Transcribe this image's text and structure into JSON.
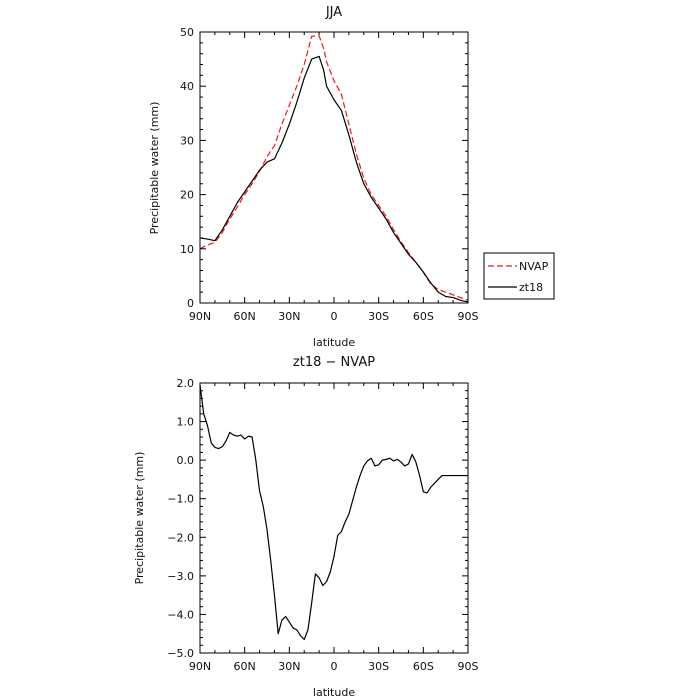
{
  "chart_data": [
    {
      "type": "line",
      "title": "JJA",
      "xlabel": "latitude",
      "ylabel": "Precipitable water (mm)",
      "xlim": [
        90,
        -90
      ],
      "ylim": [
        0,
        50
      ],
      "x_ticks": [
        90,
        60,
        30,
        0,
        -30,
        -60,
        -90
      ],
      "x_tick_labels": [
        "90N",
        "60N",
        "30N",
        "0",
        "30S",
        "60S",
        "90S"
      ],
      "y_ticks": [
        0,
        10,
        20,
        30,
        40,
        50
      ],
      "y_tick_labels": [
        "0",
        "10",
        "20",
        "30",
        "40",
        "50"
      ],
      "legend": "right, outside plot, lower",
      "series": [
        {
          "name": "NVAP",
          "color": "#e8191f",
          "dash": "dashed",
          "x": [
            90,
            85,
            80,
            75,
            70,
            65,
            60,
            55,
            50,
            45,
            40,
            35,
            30,
            25,
            20,
            15,
            10,
            7,
            5,
            0,
            -5,
            -10,
            -15,
            -20,
            -25,
            -30,
            -35,
            -40,
            -45,
            -50,
            -55,
            -60,
            -65,
            -70,
            -75,
            -80,
            -85,
            -90
          ],
          "y": [
            10.0,
            10.7,
            11.2,
            13.0,
            15.5,
            17.7,
            20.0,
            22.0,
            24.3,
            27.0,
            29.0,
            33.0,
            36.5,
            40.0,
            44.0,
            49.2,
            49.3,
            47.0,
            44.5,
            41.0,
            38.5,
            33.0,
            27.5,
            23.0,
            20.0,
            18.0,
            16.0,
            13.5,
            11.3,
            9.3,
            7.5,
            5.7,
            3.5,
            2.5,
            2.0,
            1.5,
            1.0,
            0.5
          ]
        },
        {
          "name": "zt18",
          "color": "#000000",
          "dash": "solid",
          "x": [
            90,
            85,
            80,
            75,
            70,
            65,
            60,
            55,
            50,
            45,
            40,
            35,
            30,
            25,
            20,
            15,
            10,
            7,
            5,
            0,
            -5,
            -10,
            -15,
            -20,
            -25,
            -30,
            -35,
            -40,
            -45,
            -50,
            -55,
            -60,
            -65,
            -70,
            -75,
            -80,
            -85,
            -90
          ],
          "y": [
            12.0,
            11.8,
            11.5,
            13.5,
            16.0,
            18.5,
            20.5,
            22.5,
            24.5,
            26.0,
            26.6,
            29.5,
            33.0,
            37.0,
            41.5,
            45.0,
            45.5,
            43.0,
            40.0,
            37.5,
            35.5,
            31.0,
            26.0,
            22.0,
            19.5,
            17.5,
            15.5,
            13.0,
            11.0,
            9.0,
            7.5,
            5.7,
            3.7,
            2.0,
            1.2,
            1.0,
            0.5,
            0.2
          ]
        }
      ]
    },
    {
      "type": "line",
      "title": "zt18 − NVAP",
      "xlabel": "latitude",
      "ylabel": "Precipitable water (mm)",
      "xlim": [
        90,
        -90
      ],
      "ylim": [
        -5,
        2
      ],
      "x_ticks": [
        90,
        60,
        30,
        0,
        -30,
        -60,
        -90
      ],
      "x_tick_labels": [
        "90N",
        "60N",
        "30N",
        "0",
        "30S",
        "60S",
        "90S"
      ],
      "y_ticks": [
        -5,
        -4,
        -3,
        -2,
        -1,
        0,
        1,
        2
      ],
      "y_tick_labels": [
        "−5.0",
        "−4.0",
        "−3.0",
        "−2.0",
        "−1.0",
        "0.0",
        "1.0",
        "2.0"
      ],
      "series": [
        {
          "name": "",
          "color": "#000000",
          "dash": "solid",
          "x": [
            90,
            87.5,
            85,
            82.5,
            80,
            77.5,
            75,
            72.5,
            70,
            67.5,
            65,
            62.5,
            60,
            57.5,
            55,
            52.5,
            50,
            47.5,
            45,
            42.5,
            40,
            37.5,
            35,
            32.5,
            30,
            27.5,
            25,
            22.5,
            20,
            17.5,
            15,
            12.5,
            10,
            7.5,
            5,
            2.5,
            0,
            -2.5,
            -5,
            -7.5,
            -10,
            -12.5,
            -15,
            -17.5,
            -20,
            -22.5,
            -25,
            -27.5,
            -30,
            -32.5,
            -35,
            -37.5,
            -40,
            -42.5,
            -45,
            -47.5,
            -50,
            -52.5,
            -55,
            -57.5,
            -60,
            -62.5,
            -65,
            -67.5,
            -70,
            -72.5,
            -75,
            -77.5,
            -80,
            -82.5,
            -85,
            -87.5,
            -90
          ],
          "y": [
            1.95,
            1.2,
            0.9,
            0.45,
            0.33,
            0.3,
            0.35,
            0.5,
            0.72,
            0.65,
            0.62,
            0.65,
            0.55,
            0.62,
            0.6,
            0.0,
            -0.8,
            -1.2,
            -1.8,
            -2.6,
            -3.5,
            -4.5,
            -4.15,
            -4.05,
            -4.2,
            -4.35,
            -4.4,
            -4.55,
            -4.65,
            -4.4,
            -3.7,
            -2.95,
            -3.05,
            -3.25,
            -3.15,
            -2.9,
            -2.5,
            -1.95,
            -1.85,
            -1.6,
            -1.4,
            -1.05,
            -0.7,
            -0.4,
            -0.15,
            -0.02,
            0.05,
            -0.15,
            -0.12,
            0.0,
            0.02,
            0.05,
            -0.02,
            0.02,
            -0.05,
            -0.15,
            -0.1,
            0.15,
            -0.05,
            -0.4,
            -0.82,
            -0.85,
            -0.7,
            -0.6,
            -0.5,
            -0.4,
            -0.4,
            -0.4,
            -0.4,
            -0.4,
            -0.4,
            -0.4,
            -0.4
          ]
        }
      ]
    }
  ]
}
